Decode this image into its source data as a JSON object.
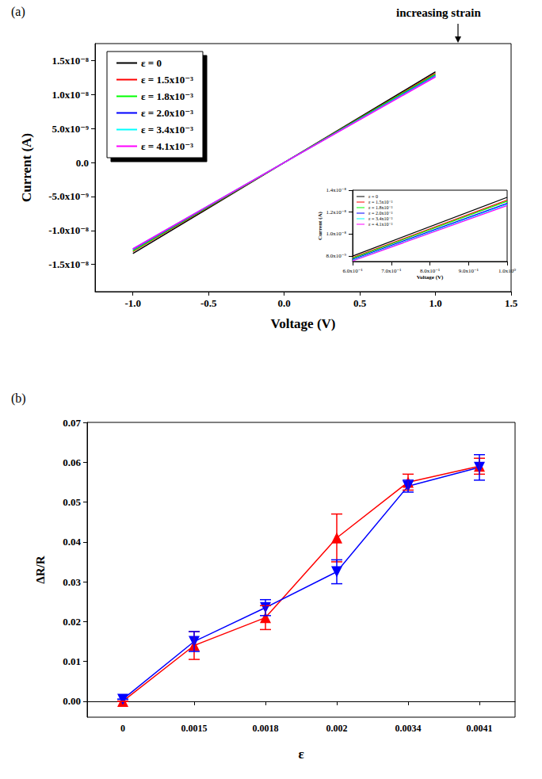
{
  "chart_data": [
    {
      "type": "line",
      "title": "(a)",
      "annotations": [
        "increasing strain"
      ],
      "x_label": "Voltage (V)",
      "y_label": "Current (A)",
      "xlim": [
        -1.25,
        1.5
      ],
      "xticks": [
        {
          "value": -1,
          "label": "-1.0"
        },
        {
          "value": -0.5,
          "label": "-0.5"
        },
        {
          "value": 0,
          "label": "0.0"
        },
        {
          "value": 0.5,
          "label": "0.5"
        },
        {
          "value": 1,
          "label": "1.0"
        },
        {
          "value": 1.5,
          "label": "1.5"
        }
      ],
      "ylim": [
        -1.9e-08,
        1.75e-08
      ],
      "yticks": [
        {
          "value": -1.5e-08,
          "label": "-1.5x10⁻⁸"
        },
        {
          "value": -1e-08,
          "label": "-1.0x10⁻⁸"
        },
        {
          "value": -5e-09,
          "label": "-5.0x10⁻⁹"
        },
        {
          "value": 0,
          "label": "0.0"
        },
        {
          "value": 5e-09,
          "label": "5.0x10⁻⁹"
        },
        {
          "value": 1e-08,
          "label": "1.0x10⁻⁸"
        },
        {
          "value": 1.5e-08,
          "label": "1.5x10⁻⁸"
        }
      ],
      "grid": false,
      "legend": "top-left",
      "x": [
        -1,
        0,
        1
      ],
      "series": [
        {
          "name": "ε = 0",
          "color": "#000000",
          "values": [
            -1.34e-08,
            0,
            1.335e-08
          ]
        },
        {
          "name": "ε = 1.5x10⁻³",
          "color": "#ff0000",
          "values": [
            -1.31e-08,
            0,
            1.31e-08
          ]
        },
        {
          "name": "ε = 1.8x10⁻³",
          "color": "#00ff00",
          "values": [
            -1.3e-08,
            0,
            1.3e-08
          ]
        },
        {
          "name": "ε = 2.0x10⁻³",
          "color": "#0000ff",
          "values": [
            -1.28e-08,
            0,
            1.28e-08
          ]
        },
        {
          "name": "ε = 3.4x10⁻³",
          "color": "#00ffff",
          "values": [
            -1.27e-08,
            0,
            1.27e-08
          ]
        },
        {
          "name": "ε = 4.1x10⁻³",
          "color": "#ff00ff",
          "values": [
            -1.27e-08,
            0,
            1.26e-08
          ]
        }
      ]
    },
    {
      "type": "line",
      "x_label": "Voltage (V)",
      "y_label": "Current (A)",
      "xlim": [
        0.6,
        1.0
      ],
      "xticks": [
        {
          "value": 0.6,
          "label": "6.0x10⁻¹"
        },
        {
          "value": 0.7,
          "label": "7.0x10⁻¹"
        },
        {
          "value": 0.8,
          "label": "8.0x10⁻¹"
        },
        {
          "value": 0.9,
          "label": "9.0x10⁻¹"
        },
        {
          "value": 1.0,
          "label": "1.0x10⁰"
        }
      ],
      "ylim": [
        7.5e-09,
        1.4e-08
      ],
      "yticks": [
        {
          "value": 8e-09,
          "label": "8.0x10⁻⁹"
        },
        {
          "value": 1e-08,
          "label": "1.0x10⁻⁸"
        },
        {
          "value": 1.2e-08,
          "label": "1.2x10⁻⁸"
        },
        {
          "value": 1.4e-08,
          "label": "1.4x10⁻⁸"
        }
      ],
      "grid": false,
      "legend": "top-left",
      "x": [
        0.6,
        1.0
      ],
      "series": [
        {
          "name": "ε = 0",
          "color": "#000000",
          "values": [
            8e-09,
            1.335e-08
          ]
        },
        {
          "name": "ε = 1.5x10⁻³",
          "color": "#ff0000",
          "values": [
            7.85e-09,
            1.31e-08
          ]
        },
        {
          "name": "ε = 1.8x10⁻³",
          "color": "#00ff00",
          "values": [
            7.8e-09,
            1.3e-08
          ]
        },
        {
          "name": "ε = 2.0x10⁻³",
          "color": "#0000ff",
          "values": [
            7.7e-09,
            1.28e-08
          ]
        },
        {
          "name": "ε = 3.4x10⁻³",
          "color": "#00ffff",
          "values": [
            7.6e-09,
            1.27e-08
          ]
        },
        {
          "name": "ε = 4.1x10⁻³",
          "color": "#ff00ff",
          "values": [
            7.55e-09,
            1.26e-08
          ]
        }
      ]
    },
    {
      "type": "line",
      "title": "(b)",
      "x_label": "ε",
      "y_label": "ΔR/R",
      "categories": [
        "0",
        "0.0015",
        "0.0018",
        "0.002",
        "0.0034",
        "0.0041"
      ],
      "ylim": [
        -0.004,
        0.07
      ],
      "yticks": [
        {
          "value": 0,
          "label": "0.00"
        },
        {
          "value": 0.01,
          "label": "0.01"
        },
        {
          "value": 0.02,
          "label": "0.02"
        },
        {
          "value": 0.03,
          "label": "0.03"
        },
        {
          "value": 0.04,
          "label": "0.04"
        },
        {
          "value": 0.05,
          "label": "0.05"
        },
        {
          "value": 0.06,
          "label": "0.06"
        },
        {
          "value": 0.07,
          "label": "0.07"
        }
      ],
      "grid": false,
      "series": [
        {
          "color": "#ff0000",
          "marker": "triangle-up",
          "values": [
            0.0,
            0.014,
            0.021,
            0.041,
            0.055,
            0.059
          ],
          "errors": [
            0,
            0.0035,
            0.003,
            0.006,
            0.002,
            0.002
          ]
        },
        {
          "color": "#0000ff",
          "marker": "triangle-down",
          "values": [
            0.0005,
            0.015,
            0.0235,
            0.0325,
            0.054,
            0.0587
          ],
          "errors": [
            0,
            0.0025,
            0.002,
            0.003,
            0.0015,
            0.0032
          ]
        }
      ]
    }
  ]
}
